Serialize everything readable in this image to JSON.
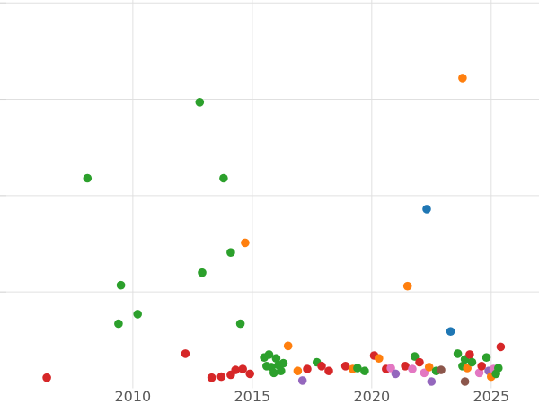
{
  "chart_data": {
    "type": "scatter",
    "title": "",
    "xlabel": "",
    "ylabel": "",
    "grid": true,
    "legend": "none",
    "x_ticks": [
      2010,
      2015,
      2020,
      2025
    ],
    "x_tick_labels": [
      "2010",
      "2015",
      "2020",
      "2025"
    ],
    "x_range": [
      2004.44,
      2027.0
    ],
    "y_range": [
      0,
      4.03
    ],
    "y_gridlines": [
      1,
      2,
      3,
      4
    ],
    "palette": {
      "blue": "#1f77b4",
      "orange": "#ff7f0e",
      "green": "#2ca02c",
      "red": "#d62728",
      "purple": "#9467bd",
      "brown": "#8c564b",
      "pink": "#e377c2"
    },
    "point_radius": 4.8,
    "points": [
      [
        2012.8,
        2.97,
        "green"
      ],
      [
        2023.8,
        3.22,
        "orange"
      ],
      [
        2008.1,
        2.18,
        "green"
      ],
      [
        2013.8,
        2.18,
        "green"
      ],
      [
        2022.3,
        1.86,
        "blue"
      ],
      [
        2014.7,
        1.51,
        "orange"
      ],
      [
        2014.1,
        1.41,
        "green"
      ],
      [
        2012.9,
        1.2,
        "green"
      ],
      [
        2009.5,
        1.07,
        "green"
      ],
      [
        2021.5,
        1.06,
        "orange"
      ],
      [
        2010.2,
        0.77,
        "green"
      ],
      [
        2009.4,
        0.67,
        "green"
      ],
      [
        2014.5,
        0.67,
        "green"
      ],
      [
        2023.3,
        0.59,
        "blue"
      ],
      [
        2016.5,
        0.44,
        "orange"
      ],
      [
        2012.2,
        0.36,
        "red"
      ],
      [
        2006.4,
        0.11,
        "red"
      ],
      [
        2013.3,
        0.11,
        "red"
      ],
      [
        2013.7,
        0.12,
        "red"
      ],
      [
        2014.1,
        0.14,
        "red"
      ],
      [
        2014.3,
        0.19,
        "red"
      ],
      [
        2014.6,
        0.2,
        "red"
      ],
      [
        2014.9,
        0.15,
        "red"
      ],
      [
        2015.5,
        0.32,
        "green"
      ],
      [
        2015.7,
        0.35,
        "green"
      ],
      [
        2016.0,
        0.31,
        "green"
      ],
      [
        2015.6,
        0.23,
        "green"
      ],
      [
        2015.8,
        0.22,
        "green"
      ],
      [
        2016.1,
        0.24,
        "green"
      ],
      [
        2016.3,
        0.26,
        "green"
      ],
      [
        2015.9,
        0.16,
        "green"
      ],
      [
        2016.2,
        0.18,
        "green"
      ],
      [
        2016.9,
        0.18,
        "orange"
      ],
      [
        2017.1,
        0.08,
        "purple"
      ],
      [
        2017.3,
        0.2,
        "red"
      ],
      [
        2017.7,
        0.27,
        "green"
      ],
      [
        2017.9,
        0.23,
        "red"
      ],
      [
        2018.2,
        0.18,
        "red"
      ],
      [
        2018.9,
        0.23,
        "red"
      ],
      [
        2019.2,
        0.2,
        "orange"
      ],
      [
        2019.4,
        0.21,
        "green"
      ],
      [
        2019.7,
        0.18,
        "green"
      ],
      [
        2020.1,
        0.34,
        "red"
      ],
      [
        2020.3,
        0.31,
        "orange"
      ],
      [
        2020.6,
        0.2,
        "red"
      ],
      [
        2020.8,
        0.21,
        "pink"
      ],
      [
        2021.0,
        0.15,
        "purple"
      ],
      [
        2021.4,
        0.23,
        "red"
      ],
      [
        2021.7,
        0.2,
        "pink"
      ],
      [
        2021.8,
        0.33,
        "green"
      ],
      [
        2022.0,
        0.27,
        "red"
      ],
      [
        2022.2,
        0.16,
        "pink"
      ],
      [
        2022.4,
        0.22,
        "orange"
      ],
      [
        2022.5,
        0.07,
        "purple"
      ],
      [
        2022.7,
        0.18,
        "green"
      ],
      [
        2022.9,
        0.19,
        "brown"
      ],
      [
        2023.6,
        0.36,
        "green"
      ],
      [
        2023.8,
        0.23,
        "green"
      ],
      [
        2023.9,
        0.3,
        "green"
      ],
      [
        2023.9,
        0.07,
        "brown"
      ],
      [
        2024.0,
        0.21,
        "orange"
      ],
      [
        2024.1,
        0.35,
        "red"
      ],
      [
        2024.2,
        0.27,
        "green"
      ],
      [
        2024.5,
        0.16,
        "pink"
      ],
      [
        2024.6,
        0.23,
        "red"
      ],
      [
        2024.8,
        0.32,
        "green"
      ],
      [
        2024.9,
        0.18,
        "purple"
      ],
      [
        2025.0,
        0.12,
        "orange"
      ],
      [
        2025.1,
        0.2,
        "pink"
      ],
      [
        2025.3,
        0.21,
        "green"
      ],
      [
        2025.4,
        0.43,
        "red"
      ],
      [
        2025.2,
        0.15,
        "green"
      ]
    ]
  }
}
